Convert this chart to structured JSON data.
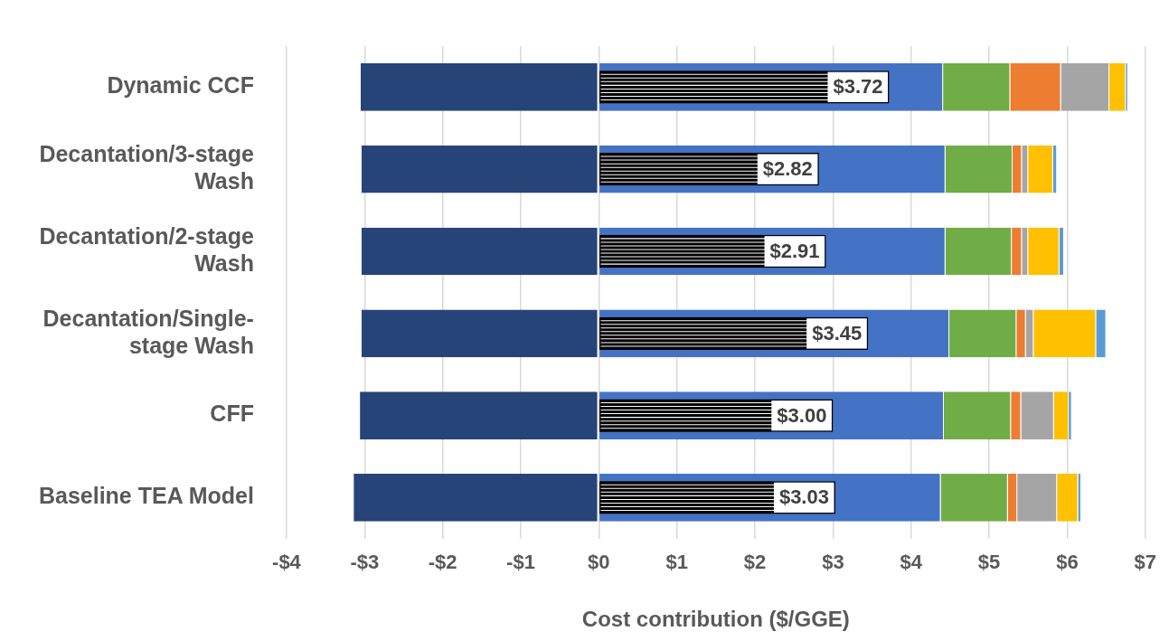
{
  "chart_data": {
    "type": "bar",
    "orientation": "horizontal",
    "stacked": true,
    "xlabel": "Cost contribution ($/GGE)",
    "categories": [
      "Dynamic CCF",
      "Decantation/3-stage Wash",
      "Decantation/2-stage Wash",
      "Decantation/Single-stage Wash",
      "CFF",
      "Baseline TEA Model"
    ],
    "series": [
      {
        "color": "#264478",
        "values": [
          -3.05,
          -3.04,
          -3.04,
          -3.04,
          -3.06,
          -3.14
        ]
      },
      {
        "color": "#4472c4",
        "values": [
          4.41,
          4.44,
          4.44,
          4.49,
          4.42,
          4.38
        ]
      },
      {
        "color": "#70ad47",
        "values": [
          0.86,
          0.86,
          0.85,
          0.86,
          0.86,
          0.86
        ]
      },
      {
        "color": "#ed7d31",
        "values": [
          0.65,
          0.12,
          0.13,
          0.12,
          0.13,
          0.12
        ]
      },
      {
        "color": "#a5a5a5",
        "values": [
          0.62,
          0.08,
          0.08,
          0.1,
          0.42,
          0.51
        ]
      },
      {
        "color": "#ffc000",
        "values": [
          0.21,
          0.32,
          0.4,
          0.8,
          0.19,
          0.27
        ]
      },
      {
        "color": "#5b9bd5",
        "values": [
          0.03,
          0.05,
          0.06,
          0.13,
          0.04,
          0.04
        ]
      },
      {
        "color": "#ffffff",
        "axis": "y2",
        "values": [
          3.72,
          2.82,
          2.91,
          3.45,
          3.0,
          3.03
        ],
        "value_labels": [
          "$3.72",
          "$2.82",
          "$2.91",
          "$3.45",
          "$3.00",
          "$3.03"
        ]
      }
    ],
    "xlim": [
      -4,
      7
    ],
    "xticks": [
      {
        "value": -4,
        "label": "-$4"
      },
      {
        "value": -3,
        "label": "-$3"
      },
      {
        "value": -2,
        "label": "-$2"
      },
      {
        "value": -1,
        "label": "-$1"
      },
      {
        "value": 0,
        "label": "$0"
      },
      {
        "value": 1,
        "label": "$1"
      },
      {
        "value": 2,
        "label": "$2"
      },
      {
        "value": 3,
        "label": "$3"
      },
      {
        "value": 4,
        "label": "$4"
      },
      {
        "value": 5,
        "label": "$5"
      },
      {
        "value": 6,
        "label": "$6"
      },
      {
        "value": 7,
        "label": "$7"
      }
    ],
    "grid": "x"
  }
}
